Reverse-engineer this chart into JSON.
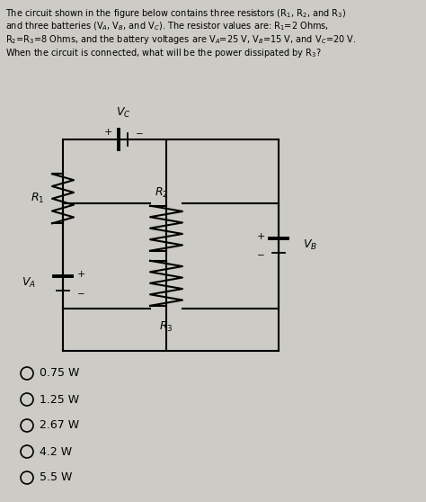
{
  "choices": [
    "0.75 W",
    "1.25 W",
    "2.67 W",
    "4.2 W",
    "5.5 W"
  ],
  "bg_color": "#cccbc6",
  "text_color": "#000000",
  "title_lines": [
    "The circuit shown in the figure below contains three resistors (R$_1$, R$_2$, and R$_3$)",
    "and three batteries (V$_A$, V$_B$, and V$_C$). The resistor values are: R$_1$=2 Ohms,",
    "R$_2$=R$_3$=8 Ohms, and the battery voltages are V$_A$=25 V, V$_B$=15 V, and V$_C$=20 V.",
    "When the circuit is connected, what will be the power dissipated by R$_3$?"
  ]
}
